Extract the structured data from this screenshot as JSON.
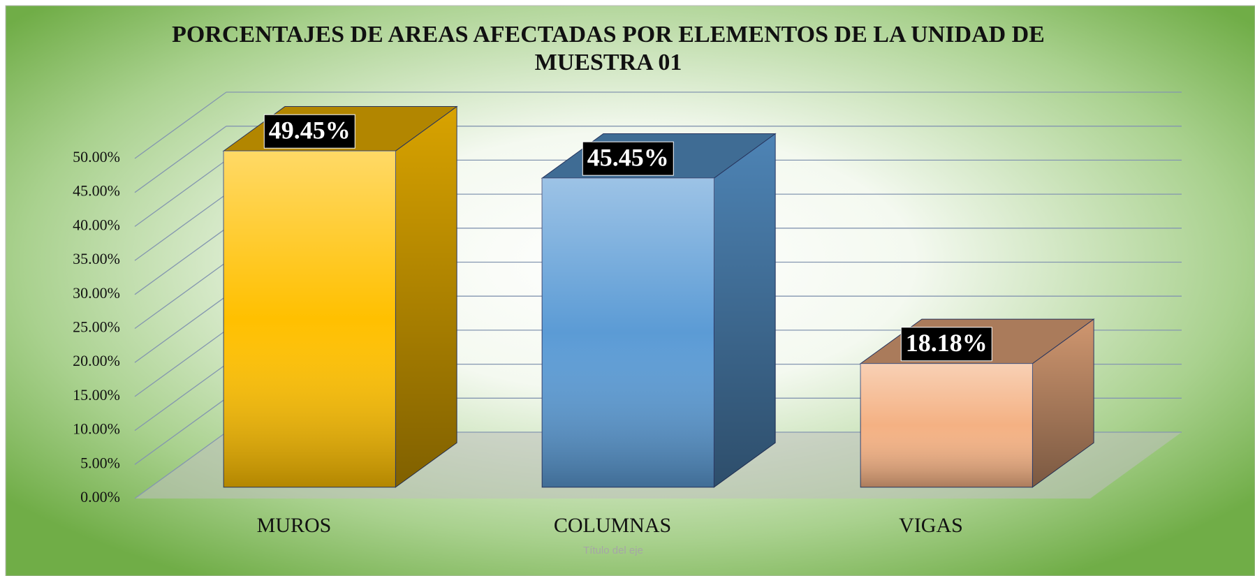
{
  "chart_data": {
    "type": "bar3d",
    "title": "PORCENTAJES DE AREAS AFECTADAS POR ELEMENTOS DE LA UNIDAD DE MUESTRA 01",
    "x_axis_label": "Título del eje",
    "categories": [
      "MUROS",
      "COLUMNAS",
      "VIGAS"
    ],
    "values": [
      49.45,
      45.45,
      18.18
    ],
    "value_labels": [
      "49.45%",
      "45.45%",
      "18.18%"
    ],
    "colors": [
      "#FFC000",
      "#5B9BD5",
      "#F4B183"
    ],
    "ylim": [
      0,
      50
    ],
    "yticks": [
      {
        "value": 0,
        "label": "0.00%"
      },
      {
        "value": 5,
        "label": "5.00%"
      },
      {
        "value": 10,
        "label": "10.00%"
      },
      {
        "value": 15,
        "label": "15.00%"
      },
      {
        "value": 20,
        "label": "20.00%"
      },
      {
        "value": 25,
        "label": "25.00%"
      },
      {
        "value": 30,
        "label": "30.00%"
      },
      {
        "value": 35,
        "label": "35.00%"
      },
      {
        "value": 40,
        "label": "40.00%"
      },
      {
        "value": 45,
        "label": "45.00%"
      },
      {
        "value": 50,
        "label": "50.00%"
      }
    ],
    "grid": true
  }
}
